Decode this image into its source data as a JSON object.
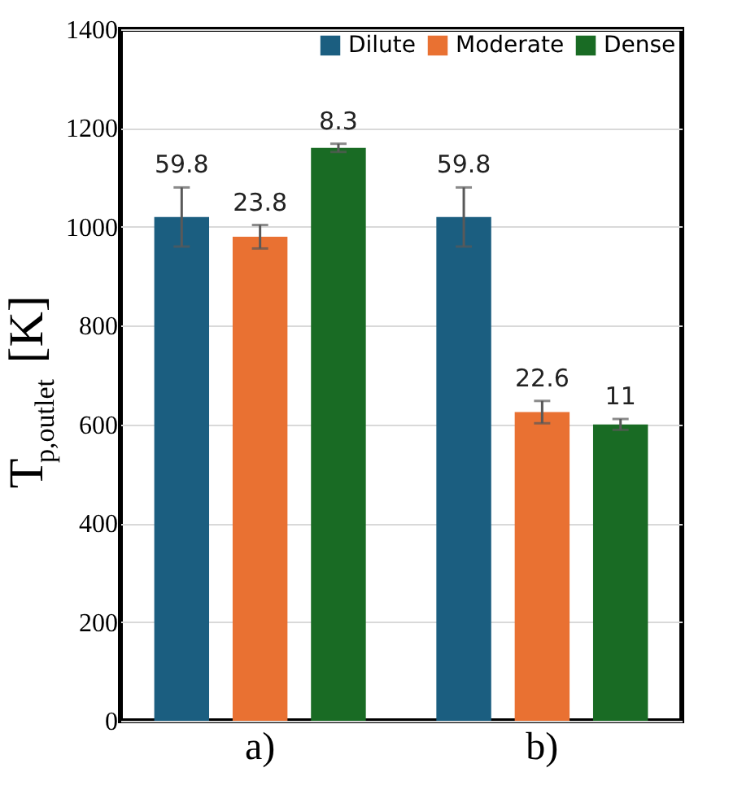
{
  "chart_data": {
    "type": "bar",
    "ylabel": "T$_{p,outlet}$ [K]",
    "categories": [
      "a)",
      "b)"
    ],
    "series": [
      {
        "name": "Dilute",
        "color": "#1b5e80",
        "values": [
          1020,
          1020
        ],
        "errors": [
          59.8,
          59.8
        ]
      },
      {
        "name": "Moderate",
        "color": "#e97132",
        "values": [
          980,
          625
        ],
        "errors": [
          23.8,
          22.6
        ]
      },
      {
        "name": "Dense",
        "color": "#196b24",
        "values": [
          1160,
          600
        ],
        "errors": [
          8.3,
          11
        ]
      }
    ],
    "ylim": [
      0,
      1400
    ],
    "yticks": [
      0,
      200,
      400,
      600,
      800,
      1000,
      1200,
      1400
    ],
    "grid": "y",
    "legend": "top right",
    "annotations": [
      "59.8",
      "59.8",
      "23.8",
      "22.6",
      "8.3",
      "11"
    ]
  }
}
